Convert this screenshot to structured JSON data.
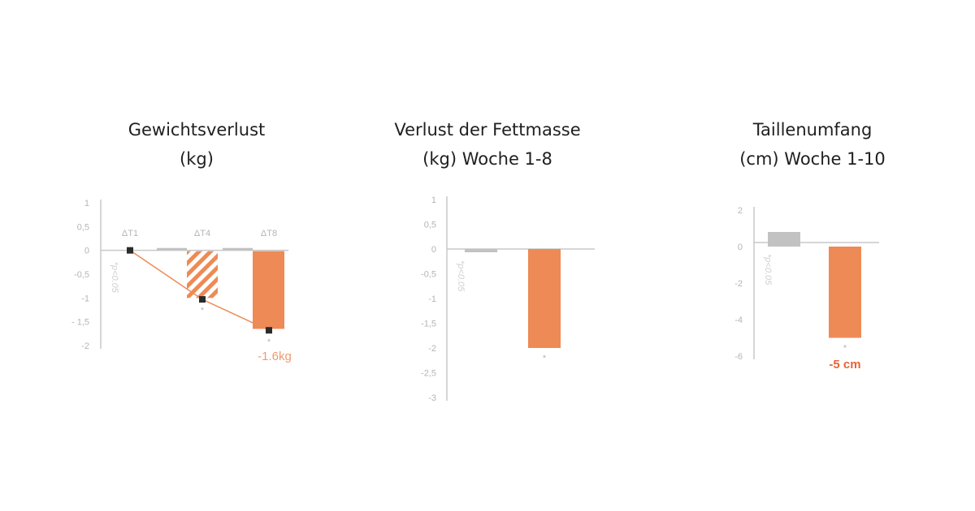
{
  "colors": {
    "accent": "#ee8a56",
    "control": "#c2c2c2",
    "axis": "#c8c8c8",
    "tick_text": "#b5b5b5",
    "title_text": "#1f1f1f",
    "marker": "#2b2b2b",
    "callout_weight": "#f09a6c",
    "callout_waist": "#e8643a"
  },
  "chart_data": [
    {
      "type": "bar",
      "title_lines": [
        "Gewichtsverlust",
        "(kg)"
      ],
      "categories": [
        "ΔT1",
        "ΔT4",
        "ΔT8"
      ],
      "ylim": [
        -2,
        1
      ],
      "y_ticks": [
        "1",
        "0,5",
        "0",
        "-0,5",
        "-1",
        "- 1,5",
        "-2"
      ],
      "significance_label": "*p<0.05",
      "series": [
        {
          "values": [
            0,
            0.05,
            0.05
          ],
          "color_key": "control"
        },
        {
          "values": [
            0,
            -1.0,
            -1.65
          ],
          "color_key": "accent",
          "styles": [
            "none",
            "hatched",
            "solid"
          ]
        }
      ],
      "line": {
        "x": [
          "ΔT1",
          "ΔT4",
          "ΔT8"
        ],
        "y": [
          0,
          -1.03,
          -1.68
        ]
      },
      "significance_marks": [
        "",
        "*",
        "*"
      ],
      "annotation": "-1.6kg",
      "grid": false
    },
    {
      "type": "bar",
      "title_lines": [
        "Verlust der Fettmasse",
        "(kg) Woche 1-8"
      ],
      "categories": [
        "",
        ""
      ],
      "ylim": [
        -3,
        1
      ],
      "y_ticks": [
        "1",
        "0,5",
        "0",
        "-0,5",
        "-1",
        "-1,5",
        "-2",
        "-2,5",
        "-3"
      ],
      "significance_label": "*p<0.05",
      "series": [
        {
          "values": [
            -0.05,
            -2.0
          ],
          "colors": [
            "control",
            "accent"
          ]
        }
      ],
      "significance_marks": [
        "",
        "*"
      ],
      "grid": false
    },
    {
      "type": "bar",
      "title_lines": [
        "Taillenumfang",
        "(cm) Woche 1-10"
      ],
      "categories": [
        "",
        ""
      ],
      "ylim": [
        -7,
        2
      ],
      "y_ticks": [
        "2",
        "0",
        "-2",
        "-4",
        "-6"
      ],
      "significance_label": "*p<0.05",
      "series": [
        {
          "values": [
            0.8,
            -5.0
          ],
          "colors": [
            "control",
            "accent"
          ]
        }
      ],
      "significance_marks": [
        "",
        "*"
      ],
      "annotation": "-5 cm",
      "grid": false
    }
  ]
}
